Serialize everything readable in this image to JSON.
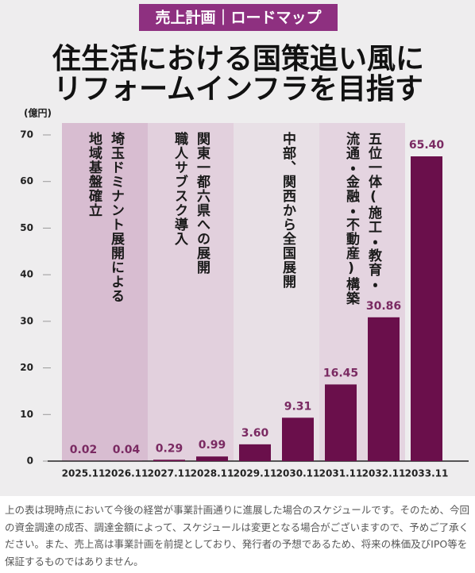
{
  "chart_data": {
    "type": "bar",
    "badge": "売上計画｜ロードマップ",
    "title": [
      "住生活における国策追い風に",
      "リフォームインフラを目指す"
    ],
    "y_label": "(億円)",
    "categories": [
      "2025.11",
      "2026.11",
      "2027.11",
      "2028.11",
      "2029.11",
      "2030.11",
      "2031.11",
      "2032.11",
      "2033.11"
    ],
    "values": [
      0.02,
      0.04,
      0.29,
      0.99,
      3.6,
      9.31,
      16.45,
      30.86,
      65.4
    ],
    "value_labels": [
      "0.02",
      "0.04",
      "0.29",
      "0.99",
      "3.60",
      "9.31",
      "16.45",
      "30.86",
      "65.40"
    ],
    "color": "#6a0f4b",
    "ylim": [
      0,
      70
    ],
    "yticks": [
      0,
      10,
      20,
      30,
      40,
      50,
      60,
      70
    ],
    "phases": [
      {
        "lines": [
          "埼玉ドミナント展開による",
          "地域基盤確立"
        ],
        "color": "#d8bdd1"
      },
      {
        "lines": [
          "関東一都六県への展開",
          "職人サブスク導入"
        ],
        "color": "#e2d0dd"
      },
      {
        "lines": [
          "中部、関西から全国展開"
        ],
        "color": "#e8e0e6"
      },
      {
        "lines": [
          "五位一体(施工・教育・",
          "流通・金融・不動産)構築"
        ],
        "color": "#e4d4e0"
      }
    ]
  },
  "note": "上の表は現時点において今後の経営が事業計画通りに進展した場合のスケジュールです。そのため、今回の資金調達の成否、調達金額によって、スケジュールは変更となる場合がございますので、予めご了承ください。また、売上高は事業計画を前提としており、発行者の予想であるため、将来の株価及びIPO等を保証するものではありません。"
}
